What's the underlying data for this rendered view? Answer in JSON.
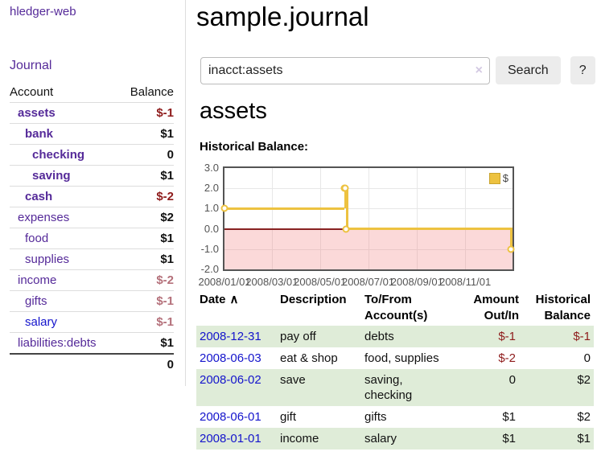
{
  "sidebar": {
    "brand": "hledger-web",
    "nav_journal": "Journal",
    "accounts_table": {
      "headers": [
        "Account",
        "Balance"
      ],
      "rows": [
        {
          "name": "assets",
          "depth": 1,
          "bold": true,
          "balance": "$-1"
        },
        {
          "name": "bank",
          "depth": 2,
          "bold": true,
          "balance": "$1"
        },
        {
          "name": "checking",
          "depth": 3,
          "bold": true,
          "balance": "0"
        },
        {
          "name": "saving",
          "depth": 3,
          "bold": true,
          "balance": "$1"
        },
        {
          "name": "cash",
          "depth": 2,
          "bold": true,
          "balance": "$-2"
        },
        {
          "name": "expenses",
          "depth": 1,
          "bold": false,
          "balance": "$2"
        },
        {
          "name": "food",
          "depth": 2,
          "bold": false,
          "balance": "$1"
        },
        {
          "name": "supplies",
          "depth": 2,
          "bold": false,
          "balance": "$1"
        },
        {
          "name": "income",
          "depth": 1,
          "bold": false,
          "balance": "$-2"
        },
        {
          "name": "gifts",
          "depth": 2,
          "bold": false,
          "balance": "$-1"
        },
        {
          "name": "salary",
          "depth": 2,
          "bold": false,
          "balance": "$-1",
          "link_style": "blue"
        },
        {
          "name": "liabilities:debts",
          "depth": 1,
          "bold": false,
          "balance": "$1"
        }
      ],
      "total": "0"
    }
  },
  "header": {
    "title": "sample.journal"
  },
  "search": {
    "value": "inacct:assets",
    "clear_icon": "×",
    "button_label": "Search",
    "help_label": "?"
  },
  "main": {
    "account_heading": "assets",
    "chart_label": "Historical Balance:"
  },
  "chart_data": {
    "type": "line",
    "step": true,
    "series": [
      {
        "name": "$",
        "color": "#edc240",
        "points": [
          [
            "2008-01-01",
            1
          ],
          [
            "2008-06-01",
            2
          ],
          [
            "2008-06-02",
            2
          ],
          [
            "2008-06-03",
            0
          ],
          [
            "2008-12-31",
            -1
          ]
        ]
      }
    ],
    "xlim": [
      "2008-01-01",
      "2008-12-31"
    ],
    "ylim": [
      -2,
      3
    ],
    "yticks": [
      3.0,
      2.0,
      1.0,
      0.0,
      -1.0,
      -2.0
    ],
    "xticks": [
      "2008/01/01",
      "2008/03/01",
      "2008/05/01",
      "2008/07/01",
      "2008/09/01",
      "2008/11/01"
    ],
    "legend": {
      "label": "$",
      "position": "top-right"
    },
    "grid": true,
    "negative_region_color": "rgba(242,128,128,0.3)",
    "zero_line_color": "#882222"
  },
  "register": {
    "sort_indicator": "∧",
    "columns": [
      {
        "label": "Date",
        "align": "left",
        "sorted": true
      },
      {
        "label": "Description",
        "align": "left"
      },
      {
        "label": "To/From Account(s)",
        "align": "left"
      },
      {
        "label": "Amount Out/In",
        "align": "right"
      },
      {
        "label": "Historical Balance",
        "align": "right"
      }
    ],
    "rows": [
      {
        "date": "2008-12-31",
        "description": "pay off",
        "to_from": "debts",
        "amount": "$-1",
        "balance": "$-1"
      },
      {
        "date": "2008-06-03",
        "description": "eat & shop",
        "to_from": "food, supplies",
        "amount": "$-2",
        "balance": "0"
      },
      {
        "date": "2008-06-02",
        "description": "save",
        "to_from": "saving, checking",
        "amount": "0",
        "balance": "$2"
      },
      {
        "date": "2008-06-01",
        "description": "gift",
        "to_from": "gifts",
        "amount": "$1",
        "balance": "$2"
      },
      {
        "date": "2008-01-01",
        "description": "income",
        "to_from": "salary",
        "amount": "$1",
        "balance": "$1"
      }
    ]
  }
}
